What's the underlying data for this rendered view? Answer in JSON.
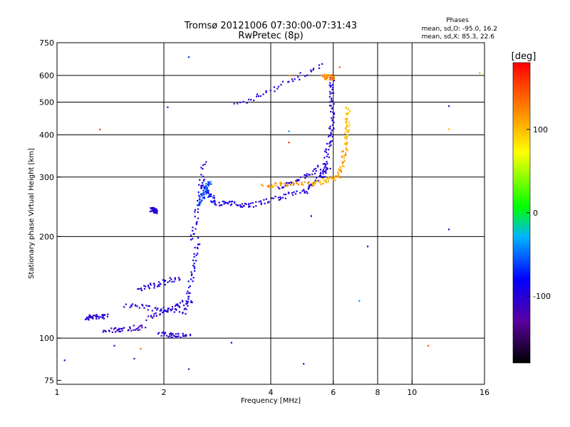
{
  "chart_data": {
    "type": "scatter",
    "title": "Tromsø 20121006 07:30:00-07:31:43",
    "subtitle": "RwPretec (8p)",
    "xlabel": "Frequency [MHz]",
    "ylabel": "Stationary phase Virtual Height [km]",
    "x_scale": "log",
    "y_scale": "log",
    "xlim": [
      1,
      16
    ],
    "ylim": [
      73,
      750
    ],
    "x_ticks": [
      1,
      2,
      4,
      6,
      8,
      10,
      16
    ],
    "x_tick_labels": [
      "1",
      "2",
      "4",
      "6",
      "8",
      "10",
      "16"
    ],
    "y_ticks": [
      75,
      100,
      200,
      300,
      400,
      500,
      600,
      750
    ],
    "y_tick_labels": [
      "75",
      "100",
      "200",
      "300",
      "400",
      "500",
      "600",
      "750"
    ],
    "grid": true,
    "grid_x": [
      2,
      4,
      6,
      8,
      10
    ],
    "grid_y": [
      100,
      200,
      300,
      400,
      500,
      600
    ],
    "stats": {
      "heading": "Phases",
      "line1": "mean, sd,O:  -95.0, 16.2",
      "line2": "mean, sd,X:  85.3, 22.6"
    },
    "colorbar": {
      "label": "[deg]",
      "range": [
        -180,
        180
      ],
      "ticks": [
        100,
        0,
        -100
      ],
      "tick_labels": [
        "100",
        "0",
        "-100"
      ]
    },
    "traces": [
      {
        "mode": "O",
        "segments": [
          {
            "from": [
              3.2,
              488
            ],
            "to": [
              5.6,
              640
            ],
            "phase": -100
          },
          {
            "from": [
              2.55,
              285
            ],
            "to": [
              2.8,
              252
            ],
            "phase": -80
          },
          {
            "from": [
              2.8,
              252
            ],
            "to": [
              3.5,
              248
            ],
            "phase": -98
          },
          {
            "from": [
              3.5,
              248
            ],
            "to": [
              5.0,
              272
            ],
            "phase": -100
          },
          {
            "from": [
              5.0,
              272
            ],
            "to": [
              5.8,
              320
            ],
            "phase": -100
          },
          {
            "from": [
              5.6,
              300
            ],
            "to": [
              5.95,
              420
            ],
            "phase": -95
          },
          {
            "from": [
              5.95,
              420
            ],
            "to": [
              5.95,
              600
            ],
            "phase": -100
          },
          {
            "from": [
              4.2,
              275
            ],
            "to": [
              5.5,
              320
            ],
            "phase": -100
          },
          {
            "from": [
              2.4,
              195
            ],
            "to": [
              2.6,
              330
            ],
            "phase": -95
          },
          {
            "from": [
              2.3,
              120
            ],
            "to": [
              2.5,
              195
            ],
            "phase": -90
          },
          {
            "from": [
              1.55,
              125
            ],
            "to": [
              2.3,
              120
            ],
            "phase": -100
          },
          {
            "from": [
              1.7,
              140
            ],
            "to": [
              2.2,
              150
            ],
            "phase": -100
          },
          {
            "from": [
              1.8,
              115
            ],
            "to": [
              2.4,
              130
            ],
            "phase": -100
          },
          {
            "from": [
              1.2,
              115
            ],
            "to": [
              1.38,
              116
            ],
            "phase": -105
          },
          {
            "from": [
              1.35,
              105
            ],
            "to": [
              1.75,
              108
            ],
            "phase": -110
          },
          {
            "from": [
              1.95,
              103
            ],
            "to": [
              2.35,
              101
            ],
            "phase": -100
          },
          {
            "from": [
              1.85,
              240
            ],
            "to": [
              1.9,
              238
            ],
            "phase": -100
          },
          {
            "from": [
              2.5,
              250
            ],
            "to": [
              2.7,
              290
            ],
            "phase": -60
          }
        ]
      },
      {
        "mode": "X",
        "segments": [
          {
            "from": [
              3.8,
              283
            ],
            "to": [
              5.2,
              290
            ],
            "phase": 115
          },
          {
            "from": [
              5.2,
              285
            ],
            "to": [
              6.2,
              300
            ],
            "phase": 100
          },
          {
            "from": [
              6.2,
              300
            ],
            "to": [
              6.55,
              380
            ],
            "phase": 110
          },
          {
            "from": [
              6.55,
              380
            ],
            "to": [
              6.6,
              480
            ],
            "phase": 100
          },
          {
            "from": [
              5.6,
              595
            ],
            "to": [
              6.0,
              592
            ],
            "phase": 120
          }
        ]
      }
    ],
    "isolated_points": [
      {
        "x": 1.05,
        "y": 86,
        "phase": -100
      },
      {
        "x": 1.32,
        "y": 415,
        "phase": 155
      },
      {
        "x": 2.35,
        "y": 680,
        "phase": -70
      },
      {
        "x": 2.05,
        "y": 483,
        "phase": -100
      },
      {
        "x": 1.45,
        "y": 95,
        "phase": -100
      },
      {
        "x": 1.65,
        "y": 87,
        "phase": -110
      },
      {
        "x": 1.72,
        "y": 93,
        "phase": 140
      },
      {
        "x": 2.35,
        "y": 81,
        "phase": -130
      },
      {
        "x": 3.1,
        "y": 97,
        "phase": -100
      },
      {
        "x": 4.5,
        "y": 410,
        "phase": -40
      },
      {
        "x": 4.5,
        "y": 380,
        "phase": 170
      },
      {
        "x": 4.52,
        "y": 600,
        "phase": 120
      },
      {
        "x": 4.95,
        "y": 84,
        "phase": -100
      },
      {
        "x": 5.2,
        "y": 230,
        "phase": -80
      },
      {
        "x": 6.25,
        "y": 635,
        "phase": 145
      },
      {
        "x": 7.1,
        "y": 129,
        "phase": -40
      },
      {
        "x": 7.5,
        "y": 187,
        "phase": -100
      },
      {
        "x": 11.1,
        "y": 95,
        "phase": 150
      },
      {
        "x": 12.7,
        "y": 487,
        "phase": -110
      },
      {
        "x": 12.7,
        "y": 210,
        "phase": -100
      },
      {
        "x": 12.7,
        "y": 416,
        "phase": 100
      },
      {
        "x": 15.5,
        "y": 610,
        "phase": 110
      }
    ]
  }
}
